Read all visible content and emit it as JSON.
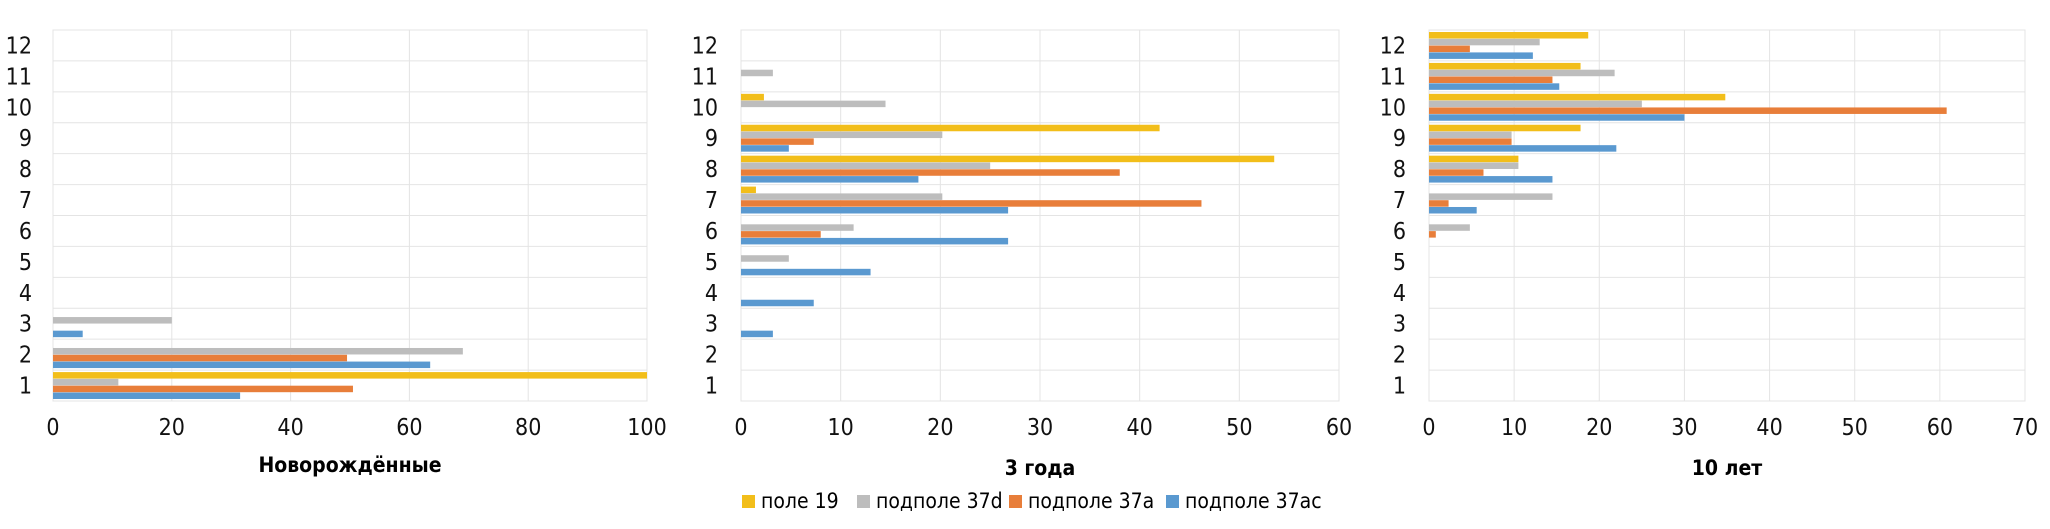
{
  "series": [
    {
      "name": "поле 19",
      "color": "#F2BE1A"
    },
    {
      "name": "подполе 37d",
      "color": "#BDBDBD"
    },
    {
      "name": "подполе 37a",
      "color": "#E87E3A"
    },
    {
      "name": "подполе 37ac",
      "color": "#5A99D0"
    }
  ],
  "chart_data": [
    {
      "type": "bar",
      "orientation": "horizontal",
      "title": "",
      "xlabel": "Новорождённые",
      "categories": [
        "1",
        "2",
        "3",
        "4",
        "5",
        "6",
        "7",
        "8",
        "9",
        "10",
        "11",
        "12"
      ],
      "xlim": [
        0,
        100
      ],
      "xticks": [
        0,
        20,
        40,
        60,
        80,
        100
      ],
      "grid": true,
      "series": [
        {
          "name": "поле 19",
          "values": [
            100,
            0,
            0,
            0,
            0,
            0,
            0,
            0,
            0,
            0,
            0,
            0
          ]
        },
        {
          "name": "подполе 37d",
          "values": [
            11,
            69,
            20,
            0,
            0,
            0,
            0,
            0,
            0,
            0,
            0,
            0
          ]
        },
        {
          "name": "подполе 37a",
          "values": [
            50.5,
            49.5,
            0,
            0,
            0,
            0,
            0,
            0,
            0,
            0,
            0,
            0
          ]
        },
        {
          "name": "подполе 37ac",
          "values": [
            31.5,
            63.5,
            5,
            0,
            0,
            0,
            0,
            0,
            0,
            0,
            0,
            0
          ]
        }
      ]
    },
    {
      "type": "bar",
      "orientation": "horizontal",
      "title": "",
      "xlabel": "3 года",
      "categories": [
        "1",
        "2",
        "3",
        "4",
        "5",
        "6",
        "7",
        "8",
        "9",
        "10",
        "11",
        "12"
      ],
      "xlim": [
        0,
        60
      ],
      "xticks": [
        0,
        10,
        20,
        30,
        40,
        50,
        60
      ],
      "grid": true,
      "series": [
        {
          "name": "поле 19",
          "values": [
            0,
            0,
            0,
            0,
            0,
            0,
            1.5,
            53.5,
            42,
            2.3,
            0,
            0
          ]
        },
        {
          "name": "подполе 37d",
          "values": [
            0,
            0,
            0,
            0,
            4.8,
            11.3,
            20.2,
            25,
            20.2,
            14.5,
            3.2,
            0
          ]
        },
        {
          "name": "подполе 37a",
          "values": [
            0,
            0,
            0,
            0,
            0,
            8,
            46.2,
            38,
            7.3,
            0,
            0,
            0
          ]
        },
        {
          "name": "подполе 37ac",
          "values": [
            0,
            0,
            3.2,
            7.3,
            13,
            26.8,
            26.8,
            17.8,
            4.8,
            0,
            0,
            0
          ]
        }
      ]
    },
    {
      "type": "bar",
      "orientation": "horizontal",
      "title": "",
      "xlabel": "10 лет",
      "categories": [
        "1",
        "2",
        "3",
        "4",
        "5",
        "6",
        "7",
        "8",
        "9",
        "10",
        "11",
        "12"
      ],
      "xlim": [
        0,
        70
      ],
      "xticks": [
        0,
        10,
        20,
        30,
        40,
        50,
        60,
        70
      ],
      "grid": true,
      "series": [
        {
          "name": "поле 19",
          "values": [
            0,
            0,
            0,
            0,
            0,
            0,
            0,
            10.5,
            17.8,
            34.8,
            17.8,
            18.7
          ]
        },
        {
          "name": "подполе 37d",
          "values": [
            0,
            0,
            0,
            0,
            0,
            4.8,
            14.5,
            10.5,
            9.7,
            25,
            21.8,
            13
          ]
        },
        {
          "name": "подполе 37a",
          "values": [
            0,
            0,
            0,
            0,
            0,
            0.8,
            2.3,
            6.4,
            9.7,
            60.8,
            14.5,
            4.8
          ]
        },
        {
          "name": "подполе 37ac",
          "values": [
            0,
            0,
            0,
            0,
            0,
            0,
            5.6,
            14.5,
            22,
            30,
            15.3,
            12.2
          ]
        }
      ]
    }
  ]
}
